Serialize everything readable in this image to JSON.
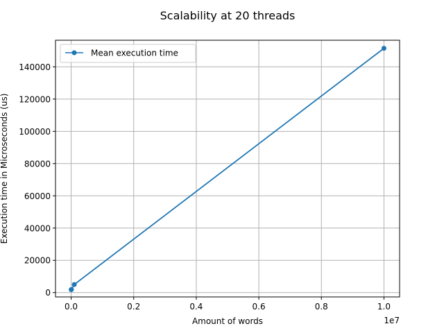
{
  "chart_data": {
    "type": "line",
    "title": "Scalability at 20 threads",
    "xlabel": "Amount of words",
    "ylabel": "Execution time in Microseconds (us)",
    "x_offset_label": "1e7",
    "xlim": [
      -500000,
      10500000
    ],
    "ylim": [
      -2700,
      156500
    ],
    "x_ticks": [
      0,
      2000000,
      4000000,
      6000000,
      8000000,
      10000000
    ],
    "x_tick_labels": [
      "0.0",
      "0.2",
      "0.4",
      "0.6",
      "0.8",
      "1.0"
    ],
    "y_ticks": [
      0,
      20000,
      40000,
      60000,
      80000,
      100000,
      120000,
      140000
    ],
    "y_tick_labels": [
      "0",
      "20000",
      "40000",
      "60000",
      "80000",
      "100000",
      "120000",
      "140000"
    ],
    "grid": true,
    "legend_position": "top-left",
    "series": [
      {
        "name": "Mean execution time",
        "color": "#1f77b4",
        "marker": "circle",
        "x": [
          1000,
          10000,
          100000,
          10000000
        ],
        "y": [
          1800,
          1900,
          5000,
          151500
        ]
      }
    ]
  }
}
